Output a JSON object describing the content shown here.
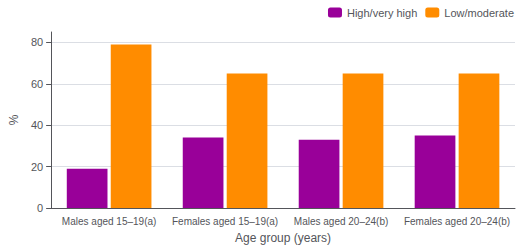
{
  "chart_data": {
    "type": "bar",
    "categories": [
      "Males aged 15–19(a)",
      "Females aged 15–19(a)",
      "Males aged 20–24(b)",
      "Females aged 20–24(b)"
    ],
    "series": [
      {
        "name": "High/very high",
        "color": "#990099",
        "values": [
          19,
          34,
          33,
          35
        ]
      },
      {
        "name": "Low/moderate",
        "color": "#FF8C00",
        "values": [
          79,
          65,
          65,
          65
        ]
      }
    ],
    "xlabel": "Age group (years)",
    "ylabel": "%",
    "ylim": [
      0,
      85
    ],
    "yticks": [
      0,
      20,
      40,
      60,
      80
    ],
    "grid": true,
    "legend": "upper right"
  }
}
